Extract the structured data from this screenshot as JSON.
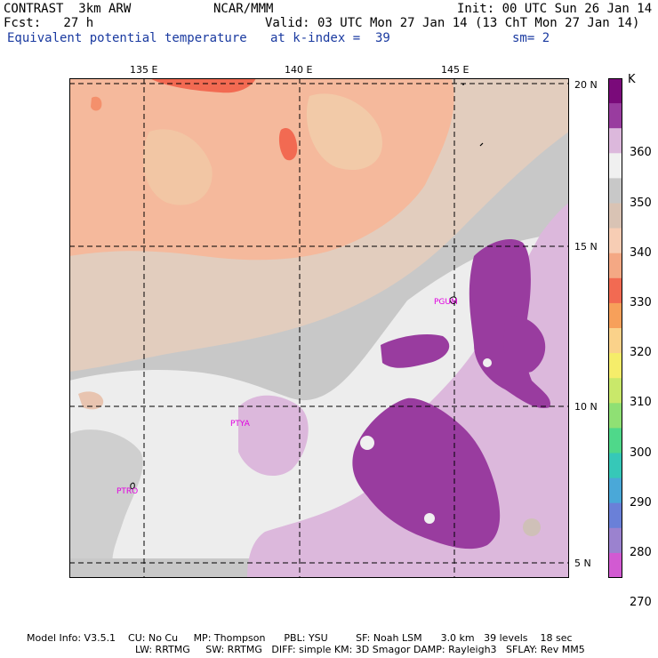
{
  "header": {
    "model": "CONTRAST  3km ARW",
    "org": "NCAR/MMM",
    "init": "Init: 00 UTC Sun 26 Jan 14",
    "fcst": "Fcst:   27 h",
    "valid": "Valid: 03 UTC Mon 27 Jan 14 (13 ChT Mon 27 Jan 14)",
    "field": "Equivalent potential temperature",
    "level": "at k-index =  39",
    "smooth": "sm= 2"
  },
  "axes": {
    "lon_labels": [
      "135 E",
      "140 E",
      "145 E"
    ],
    "lat_labels": [
      "20 N",
      "15 N",
      "10 N",
      "5 N"
    ]
  },
  "colorbar": {
    "unit": "K",
    "labels": [
      "360",
      "350",
      "340",
      "330",
      "320",
      "310",
      "300",
      "290",
      "280",
      "270"
    ],
    "colors": [
      "#7a0a7a",
      "#993c9f",
      "#dcb8dc",
      "#f0f0f0",
      "#c8c8c8",
      "#d9c3b4",
      "#f7cdb4",
      "#f4a884",
      "#f26a52",
      "#f7a05a",
      "#fad28a",
      "#f5ed6a",
      "#c9e86a",
      "#8fe074",
      "#4fd88a",
      "#36c8b8",
      "#4aa8d8",
      "#6a80d8",
      "#9b82cf",
      "#d25ad2"
    ]
  },
  "stations": [
    "PGUM",
    "PTYA",
    "PTRO"
  ],
  "footer": {
    "line1": "Model Info: V3.5.1    CU: No Cu     MP: Thompson      PBL: YSU         SF: Noah LSM      3.0 km   39 levels    18 sec",
    "line2": "LW: RRTMG     SW: RRTMG   DIFF: simple KM: 3D Smagor DAMP: Rayleigh3   SFLAY: Rev MM5"
  }
}
